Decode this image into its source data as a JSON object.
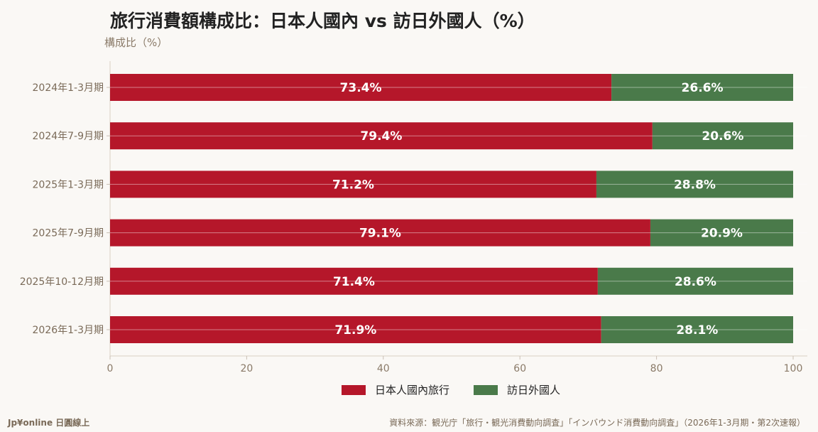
{
  "title": "旅行消費額構成比：日本人國內 vs 訪日外國人（%）",
  "colors": {
    "domestic": "#b5172a",
    "inbound": "#4a7a4a"
  },
  "chart_data": {
    "type": "bar",
    "orientation": "horizontal",
    "stacked": true,
    "title": "旅行消費額構成比：日本人國內 vs 訪日外國人（%）",
    "ylabel": "構成比（%）",
    "categories": [
      "2024年1-3月期",
      "2024年7-9月期",
      "2025年1-3月期",
      "2025年7-9月期",
      "2025年10-12月期",
      "2026年1-3月期"
    ],
    "series": [
      {
        "name": "日本人國內旅行",
        "values": [
          73.4,
          79.4,
          71.2,
          79.1,
          71.4,
          71.9
        ]
      },
      {
        "name": "訪日外國人",
        "values": [
          26.6,
          20.6,
          28.8,
          20.9,
          28.6,
          28.1
        ]
      }
    ],
    "xlim": [
      0,
      100
    ],
    "xticks": [
      0,
      20,
      40,
      60,
      80,
      100
    ],
    "legend": "bottom-center",
    "grid": true
  },
  "footer": {
    "brand": "Jp¥online 日圓線上",
    "source": "資料來源：観光庁「旅行・観光消費動向調査」「インバウンド消費動向調査」（2026年1-3月期・第2次速報）"
  }
}
